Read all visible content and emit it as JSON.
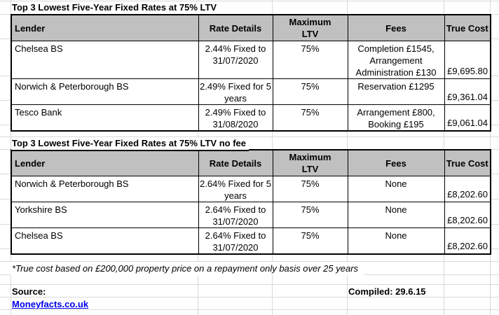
{
  "colors": {
    "header_bg": "#c0c0c0",
    "border": "#000000",
    "gridline": "#d9d9d9",
    "link": "#0000ee"
  },
  "tables": [
    {
      "title": "Top 3 Lowest Five-Year Fixed Rates at 75% LTV",
      "columns": [
        "Lender",
        "Rate Details",
        "Maximum LTV",
        "Fees",
        "True Cost"
      ],
      "rows": [
        {
          "lender": "Chelsea BS",
          "rate_details": "2.44% Fixed to 31/07/2020",
          "max_ltv": "75%",
          "fees": "Completion £1545, Arrangement Administration £130",
          "true_cost": "£9,695.80"
        },
        {
          "lender": "Norwich & Peterborough BS",
          "rate_details": "2.49% Fixed for 5 years",
          "max_ltv": "75%",
          "fees": "Reservation £1295",
          "true_cost": "£9,361.04"
        },
        {
          "lender": "Tesco Bank",
          "rate_details": "2.49% Fixed to 31/08/2020",
          "max_ltv": "75%",
          "fees": "Arrangement £800, Booking £195",
          "true_cost": "£9,061.04"
        }
      ]
    },
    {
      "title": "Top 3 Lowest Five-Year Fixed Rates at 75% LTV no fee",
      "columns": [
        "Lender",
        "Rate Details",
        "Maximum LTV",
        "Fees",
        "True Cost"
      ],
      "rows": [
        {
          "lender": "Norwich & Peterborough BS",
          "rate_details": "2.64% Fixed for 5 years",
          "max_ltv": "75%",
          "fees": "None",
          "true_cost": "£8,202.60"
        },
        {
          "lender": "Yorkshire BS",
          "rate_details": "2.64% Fixed to 31/07/2020",
          "max_ltv": "75%",
          "fees": "None",
          "true_cost": "£8,202.60"
        },
        {
          "lender": "Chelsea BS",
          "rate_details": "2.64% Fixed to 31/07/2020",
          "max_ltv": "75%",
          "fees": "None",
          "true_cost": "£8,202.60"
        }
      ]
    }
  ],
  "footer": {
    "footnote": "*True cost based on £200,000 property price on a repayment only basis over 25 years",
    "source_label": "Source:",
    "source_link": "Moneyfacts.co.uk",
    "compiled": "Compiled: 29.6.15"
  }
}
